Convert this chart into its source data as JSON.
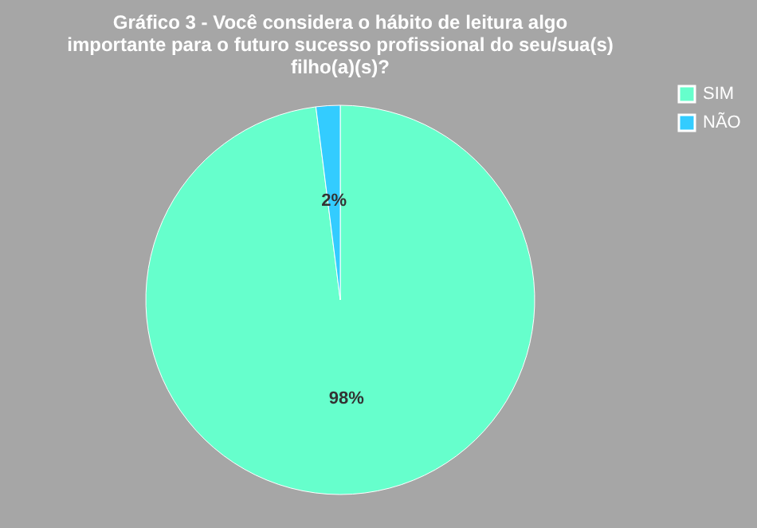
{
  "chart_data": {
    "type": "pie",
    "title": "Gráfico 3 - Você considera o hábito de leitura algo importante para o futuro sucesso profissional do seu/sua(s) filho(a)(s)?",
    "categories": [
      "SIM",
      "NÃO"
    ],
    "values": [
      98,
      2
    ],
    "colors": [
      "#66ffcc",
      "#33ccff"
    ],
    "value_labels": [
      "98%",
      "2%"
    ],
    "legend": "right"
  }
}
